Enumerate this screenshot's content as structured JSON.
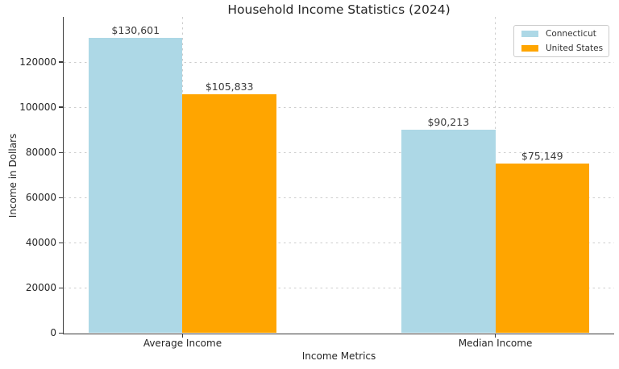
{
  "chart_data": {
    "type": "bar",
    "title": "Household Income Statistics (2024)",
    "xlabel": "Income Metrics",
    "ylabel": "Income in Dollars",
    "categories": [
      "Average Income",
      "Median Income"
    ],
    "series": [
      {
        "name": "Connecticut",
        "color": "#ADD8E6",
        "values": [
          130601,
          90213
        ],
        "value_labels": [
          "$130,601",
          "$90,213"
        ]
      },
      {
        "name": "United States",
        "color": "#FFA500",
        "values": [
          105833,
          75149
        ],
        "value_labels": [
          "$105,833",
          "$75,149"
        ]
      }
    ],
    "ylim": [
      0,
      140000
    ],
    "yticks": [
      0,
      20000,
      40000,
      60000,
      80000,
      100000,
      120000
    ],
    "grid": true,
    "grid_style": "dashed",
    "legend_position": "upper right",
    "spines": [
      "left",
      "bottom"
    ],
    "text_color": "#262626",
    "gridline_color": "#cdcdcd",
    "spine_color": "#3a3a3a"
  }
}
